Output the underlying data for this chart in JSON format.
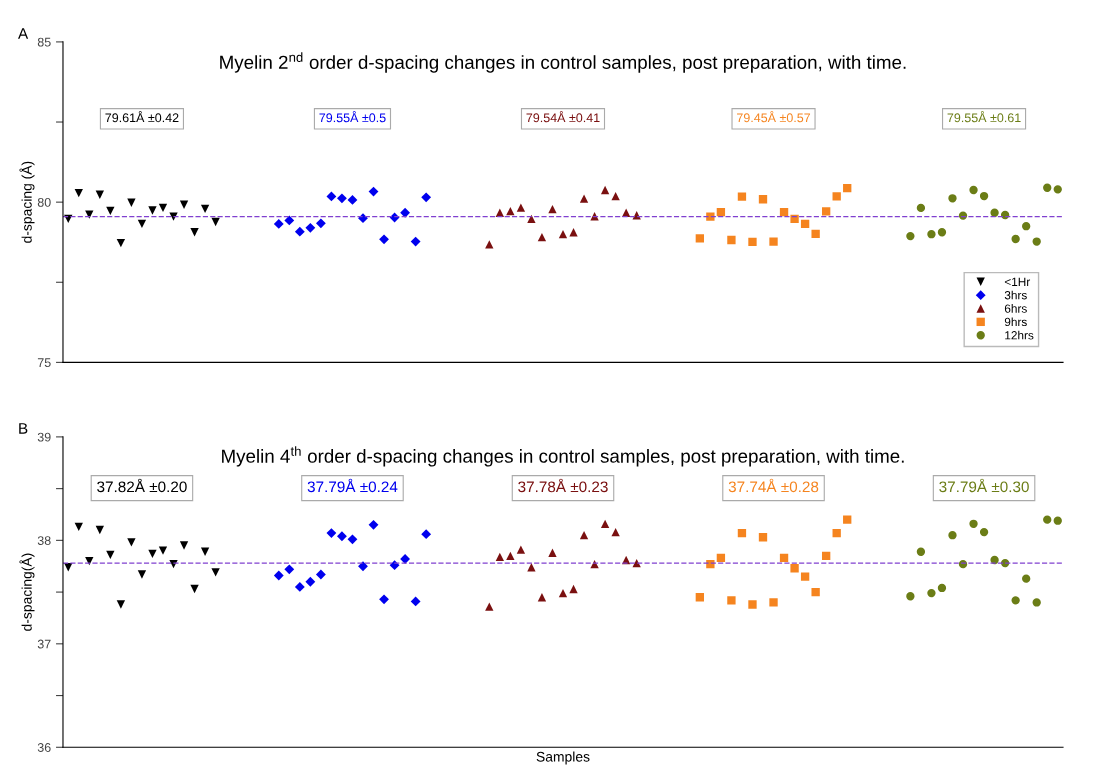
{
  "chart_data": [
    {
      "type": "scatter",
      "title": "Myelin 2$^{nd}$ order d-spacing changes in control samples, post preparation, with time.",
      "ylabel": "d-spacing (Å)",
      "annotations": [
        "A",
        "79.61Å ±0.42",
        "79.55Å ±0.5",
        "79.54Å ±0.41",
        "79.45Å ±0.57",
        "79.55Å ±0.61"
      ],
      "categories": [
        null,
        null,
        null,
        null,
        null,
        null,
        null,
        null,
        null,
        null,
        null,
        null,
        null,
        null,
        null,
        null,
        null,
        null,
        null,
        null,
        null,
        null,
        null,
        null,
        null,
        null,
        null,
        null,
        null,
        null,
        null,
        null,
        null,
        null,
        null,
        null,
        null,
        null,
        null,
        null,
        null,
        null,
        null,
        null,
        null,
        null,
        null,
        null,
        null,
        null,
        null,
        null,
        null,
        null,
        null,
        null,
        null,
        null,
        null,
        null,
        null,
        null,
        null,
        null,
        null,
        null,
        null,
        null,
        null,
        null,
        null,
        null,
        null,
        null,
        null,
        null,
        null,
        null,
        null,
        null,
        null,
        null,
        null,
        null,
        null,
        null,
        null,
        null,
        null,
        null,
        null,
        null,
        null,
        null,
        null
      ],
      "series": [
        {
          "name": "<1Hr",
          "color": "#000000",
          "marker": "triangle_down",
          "values": [
            79.48,
            80.28,
            79.61,
            80.23,
            79.73,
            78.72,
            79.98,
            79.32,
            79.74,
            79.82,
            79.55,
            79.92,
            79.06,
            79.79,
            79.38,
            null,
            null,
            null,
            null,
            null,
            null,
            null,
            null,
            null,
            null,
            null,
            null,
            null,
            null,
            null,
            null,
            null,
            null,
            null,
            null,
            null,
            null,
            null,
            null,
            null,
            null,
            null,
            null,
            null,
            null,
            null,
            null,
            null,
            null,
            null,
            null,
            null,
            null,
            null,
            null,
            null,
            null,
            null,
            null,
            null,
            null,
            null,
            null,
            null,
            null,
            null,
            null,
            null,
            null,
            null,
            null,
            null,
            null,
            null,
            null,
            null,
            null,
            null,
            null,
            null,
            null,
            null,
            null,
            null,
            null,
            null,
            null,
            null,
            null,
            null,
            null,
            null,
            null,
            null,
            null
          ]
        },
        {
          "name": "3hrs",
          "color": "#0000ee",
          "marker": "diamond",
          "values": [
            null,
            null,
            null,
            null,
            null,
            null,
            null,
            null,
            null,
            null,
            null,
            null,
            null,
            null,
            null,
            null,
            null,
            null,
            null,
            null,
            79.32,
            79.43,
            79.08,
            79.2,
            79.34,
            80.18,
            80.12,
            80.07,
            79.5,
            80.33,
            78.84,
            79.52,
            79.67,
            78.77,
            80.15,
            null,
            null,
            null,
            null,
            null,
            null,
            null,
            null,
            null,
            null,
            null,
            null,
            null,
            null,
            null,
            null,
            null,
            null,
            null,
            null,
            null,
            null,
            null,
            null,
            null,
            null,
            null,
            null,
            null,
            null,
            null,
            null,
            null,
            null,
            null,
            null,
            null,
            null,
            null,
            null,
            null,
            null,
            null,
            null,
            null,
            null,
            null,
            null,
            null,
            null,
            null,
            null,
            null,
            null,
            null,
            null,
            null,
            null,
            null,
            null
          ]
        },
        {
          "name": "6hrs",
          "color": "#7a1010",
          "marker": "triangle",
          "values": [
            null,
            null,
            null,
            null,
            null,
            null,
            null,
            null,
            null,
            null,
            null,
            null,
            null,
            null,
            null,
            null,
            null,
            null,
            null,
            null,
            null,
            null,
            null,
            null,
            null,
            null,
            null,
            null,
            null,
            null,
            null,
            null,
            null,
            null,
            null,
            null,
            null,
            null,
            null,
            null,
            78.68,
            79.67,
            79.72,
            79.83,
            79.48,
            78.91,
            79.78,
            79.0,
            79.06,
            80.11,
            79.56,
            80.38,
            80.19,
            79.67,
            79.59,
            null,
            null,
            null,
            null,
            null,
            null,
            null,
            null,
            null,
            null,
            null,
            null,
            null,
            null,
            null,
            null,
            null,
            null,
            null,
            null,
            null,
            null,
            null,
            null,
            null,
            null,
            null,
            null,
            null,
            null,
            null,
            null,
            null,
            null,
            null,
            null,
            null,
            null,
            null,
            null
          ]
        },
        {
          "name": "9hrs",
          "color": "#f5841f",
          "marker": "square",
          "values": [
            null,
            null,
            null,
            null,
            null,
            null,
            null,
            null,
            null,
            null,
            null,
            null,
            null,
            null,
            null,
            null,
            null,
            null,
            null,
            null,
            null,
            null,
            null,
            null,
            null,
            null,
            null,
            null,
            null,
            null,
            null,
            null,
            null,
            null,
            null,
            null,
            null,
            null,
            null,
            null,
            null,
            null,
            null,
            null,
            null,
            null,
            null,
            null,
            null,
            null,
            null,
            null,
            null,
            null,
            null,
            null,
            null,
            null,
            null,
            null,
            78.87,
            79.55,
            79.69,
            78.82,
            80.17,
            78.76,
            80.09,
            78.77,
            79.69,
            79.48,
            79.32,
            79.01,
            79.71,
            80.18,
            80.44,
            null,
            null,
            null,
            null,
            null,
            null,
            null,
            null,
            null,
            null,
            null,
            null,
            null,
            null,
            null,
            null,
            null,
            null,
            null,
            null
          ]
        },
        {
          "name": "12hrs",
          "color": "#6b7d16",
          "marker": "circle",
          "values": [
            null,
            null,
            null,
            null,
            null,
            null,
            null,
            null,
            null,
            null,
            null,
            null,
            null,
            null,
            null,
            null,
            null,
            null,
            null,
            null,
            null,
            null,
            null,
            null,
            null,
            null,
            null,
            null,
            null,
            null,
            null,
            null,
            null,
            null,
            null,
            null,
            null,
            null,
            null,
            null,
            null,
            null,
            null,
            null,
            null,
            null,
            null,
            null,
            null,
            null,
            null,
            null,
            null,
            null,
            null,
            null,
            null,
            null,
            null,
            null,
            null,
            null,
            null,
            null,
            null,
            null,
            null,
            null,
            null,
            null,
            null,
            null,
            null,
            null,
            null,
            null,
            null,
            null,
            null,
            null,
            78.94,
            79.82,
            79.0,
            79.06,
            80.12,
            79.58,
            80.38,
            80.19,
            79.67,
            79.6,
            78.85,
            79.25,
            78.77,
            80.45,
            80.4
          ]
        }
      ],
      "ylim": [
        75,
        85
      ],
      "yticks": [
        75,
        {
          "value": 77.5,
          "label": null
        },
        80,
        {
          "value": 82.5,
          "label": null
        },
        85
      ],
      "ref_lines": [
        {
          "axis": "y",
          "value": 79.55,
          "color": "#8040d0",
          "line_style": "dashed"
        }
      ],
      "legend": "bottom right",
      "grid": false,
      "tick_labels": "y"
    },
    {
      "type": "scatter",
      "title": "Myelin 4$^{th}$ order d-spacing changes in control samples, post preparation, with time.",
      "ylabel": "d-spacing(Å)",
      "xlabel": "Samples",
      "annotations": [
        "B",
        "37.82Å ±0.20",
        "37.79Å ±0.24",
        "37.78Å ±0.23",
        "37.74Å ±0.28",
        "37.79Å ±0.30"
      ],
      "categories": [
        null,
        null,
        null,
        null,
        null,
        null,
        null,
        null,
        null,
        null,
        null,
        null,
        null,
        null,
        null,
        null,
        null,
        null,
        null,
        null,
        null,
        null,
        null,
        null,
        null,
        null,
        null,
        null,
        null,
        null,
        null,
        null,
        null,
        null,
        null,
        null,
        null,
        null,
        null,
        null,
        null,
        null,
        null,
        null,
        null,
        null,
        null,
        null,
        null,
        null,
        null,
        null,
        null,
        null,
        null,
        null,
        null,
        null,
        null,
        null,
        null,
        null,
        null,
        null,
        null,
        null,
        null,
        null,
        null,
        null,
        null,
        null,
        null,
        null,
        null,
        null,
        null,
        null,
        null,
        null,
        null,
        null,
        null,
        null,
        null,
        null,
        null,
        null,
        null,
        null,
        null,
        null,
        null,
        null,
        null
      ],
      "series": [
        {
          "color": "#000000",
          "marker": "triangle_down",
          "values": [
            37.74,
            38.13,
            37.8,
            38.1,
            37.86,
            37.38,
            37.98,
            37.67,
            37.87,
            37.9,
            37.77,
            37.95,
            37.53,
            37.89,
            37.69,
            null,
            null,
            null,
            null,
            null,
            null,
            null,
            null,
            null,
            null,
            null,
            null,
            null,
            null,
            null,
            null,
            null,
            null,
            null,
            null,
            null,
            null,
            null,
            null,
            null,
            null,
            null,
            null,
            null,
            null,
            null,
            null,
            null,
            null,
            null,
            null,
            null,
            null,
            null,
            null,
            null,
            null,
            null,
            null,
            null,
            null,
            null,
            null,
            null,
            null,
            null,
            null,
            null,
            null,
            null,
            null,
            null,
            null,
            null,
            null,
            null,
            null,
            null,
            null,
            null,
            null,
            null,
            null,
            null,
            null,
            null,
            null,
            null,
            null,
            null,
            null,
            null,
            null,
            null,
            null
          ]
        },
        {
          "color": "#0000ee",
          "marker": "diamond",
          "values": [
            null,
            null,
            null,
            null,
            null,
            null,
            null,
            null,
            null,
            null,
            null,
            null,
            null,
            null,
            null,
            null,
            null,
            null,
            null,
            null,
            37.66,
            37.72,
            37.55,
            37.6,
            37.67,
            38.07,
            38.04,
            38.01,
            37.75,
            38.15,
            37.43,
            37.76,
            37.82,
            37.41,
            38.06,
            null,
            null,
            null,
            null,
            null,
            null,
            null,
            null,
            null,
            null,
            null,
            null,
            null,
            null,
            null,
            null,
            null,
            null,
            null,
            null,
            null,
            null,
            null,
            null,
            null,
            null,
            null,
            null,
            null,
            null,
            null,
            null,
            null,
            null,
            null,
            null,
            null,
            null,
            null,
            null,
            null,
            null,
            null,
            null,
            null,
            null,
            null,
            null,
            null,
            null,
            null,
            null,
            null,
            null,
            null,
            null,
            null,
            null,
            null,
            null
          ]
        },
        {
          "color": "#7a1010",
          "marker": "triangle",
          "values": [
            null,
            null,
            null,
            null,
            null,
            null,
            null,
            null,
            null,
            null,
            null,
            null,
            null,
            null,
            null,
            null,
            null,
            null,
            null,
            null,
            null,
            null,
            null,
            null,
            null,
            null,
            null,
            null,
            null,
            null,
            null,
            null,
            null,
            null,
            null,
            null,
            null,
            null,
            null,
            null,
            37.36,
            37.84,
            37.85,
            37.91,
            37.74,
            37.45,
            37.88,
            37.49,
            37.53,
            38.05,
            37.77,
            38.16,
            38.08,
            37.81,
            37.78,
            null,
            null,
            null,
            null,
            null,
            null,
            null,
            null,
            null,
            null,
            null,
            null,
            null,
            null,
            null,
            null,
            null,
            null,
            null,
            null,
            null,
            null,
            null,
            null,
            null,
            null,
            null,
            null,
            null,
            null,
            null,
            null,
            null,
            null,
            null,
            null,
            null,
            null,
            null,
            null
          ]
        },
        {
          "color": "#f5841f",
          "marker": "square",
          "values": [
            null,
            null,
            null,
            null,
            null,
            null,
            null,
            null,
            null,
            null,
            null,
            null,
            null,
            null,
            null,
            null,
            null,
            null,
            null,
            null,
            null,
            null,
            null,
            null,
            null,
            null,
            null,
            null,
            null,
            null,
            null,
            null,
            null,
            null,
            null,
            null,
            null,
            null,
            null,
            null,
            null,
            null,
            null,
            null,
            null,
            null,
            null,
            null,
            null,
            null,
            null,
            null,
            null,
            null,
            null,
            null,
            null,
            null,
            null,
            null,
            37.45,
            37.77,
            37.83,
            37.42,
            38.07,
            37.38,
            38.03,
            37.4,
            37.83,
            37.73,
            37.65,
            37.5,
            37.85,
            38.07,
            38.2,
            null,
            null,
            null,
            null,
            null,
            null,
            null,
            null,
            null,
            null,
            null,
            null,
            null,
            null,
            null,
            null,
            null,
            null,
            null,
            null
          ]
        },
        {
          "color": "#6b7d16",
          "marker": "circle",
          "values": [
            null,
            null,
            null,
            null,
            null,
            null,
            null,
            null,
            null,
            null,
            null,
            null,
            null,
            null,
            null,
            null,
            null,
            null,
            null,
            null,
            null,
            null,
            null,
            null,
            null,
            null,
            null,
            null,
            null,
            null,
            null,
            null,
            null,
            null,
            null,
            null,
            null,
            null,
            null,
            null,
            null,
            null,
            null,
            null,
            null,
            null,
            null,
            null,
            null,
            null,
            null,
            null,
            null,
            null,
            null,
            null,
            null,
            null,
            null,
            null,
            null,
            null,
            null,
            null,
            null,
            null,
            null,
            null,
            null,
            null,
            null,
            null,
            null,
            null,
            null,
            null,
            null,
            null,
            null,
            null,
            37.46,
            37.89,
            37.49,
            37.54,
            38.05,
            37.77,
            38.16,
            38.08,
            37.81,
            37.78,
            37.42,
            37.63,
            37.4,
            38.2,
            38.19
          ]
        }
      ],
      "ylim": [
        36,
        39
      ],
      "yticks": [
        36,
        {
          "value": 36.5,
          "label": null
        },
        37,
        {
          "value": 37.5,
          "label": null
        },
        38,
        {
          "value": 38.5,
          "label": null
        },
        39
      ],
      "ref_lines": [
        {
          "axis": "y",
          "value": 37.78,
          "color": "#8040d0",
          "line_style": "dashed"
        }
      ],
      "grid": false,
      "tick_labels": "y"
    }
  ]
}
